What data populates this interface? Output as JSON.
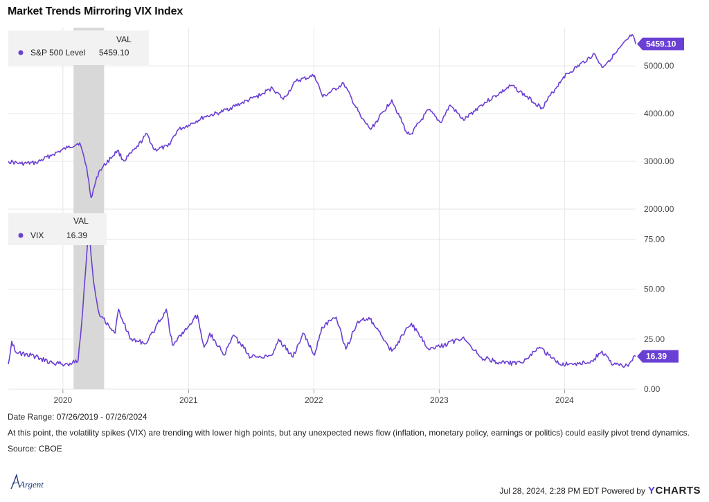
{
  "title": "Market Trends Mirroring VIX Index",
  "colors": {
    "series": "#6a3fd4",
    "grid": "#e6e6e6",
    "recession": "#d8d8d8",
    "legend_bg": "#f2f2f2"
  },
  "top_panel": {
    "legend_header": "VAL",
    "series_name": "S&P 500 Level",
    "series_value": "5459.10",
    "badge": "5459.10",
    "y_ticks": [
      "5000.00",
      "4000.00",
      "3000.00",
      "2000.00"
    ]
  },
  "bottom_panel": {
    "legend_header": "VAL",
    "series_name": "VIX",
    "series_value": "16.39",
    "badge": "16.39",
    "y_ticks": [
      "75.00",
      "50.00",
      "25.00",
      "0.00"
    ]
  },
  "x_ticks": [
    "2020",
    "2021",
    "2022",
    "2023",
    "2024"
  ],
  "footer": {
    "date_range": "Date Range: 07/26/2019 - 07/26/2024",
    "commentary": "At this point, the volatility spikes (VIX) are trending with lower high points, but any unexpected news flow (inflation, monetary policy, earnings or politics) could easily pivot trend dynamics.",
    "source": "Source: CBOE",
    "logo_text": "Argent",
    "timestamp": "Jul 28, 2024, 2:28 PM EDT Powered by",
    "brand_y": "Y",
    "brand_rest": "CHARTS"
  },
  "chart_data": [
    {
      "type": "line",
      "title": "",
      "series": [
        {
          "name": "S&P 500 Level",
          "x": [
            "2019-07-26",
            "2019-09-01",
            "2019-10-15",
            "2019-12-01",
            "2020-01-15",
            "2020-02-19",
            "2020-03-10",
            "2020-03-23",
            "2020-04-15",
            "2020-06-08",
            "2020-06-26",
            "2020-08-01",
            "2020-09-02",
            "2020-09-23",
            "2020-11-01",
            "2020-12-01",
            "2021-01-01",
            "2021-02-15",
            "2021-04-01",
            "2021-06-01",
            "2021-08-01",
            "2021-09-02",
            "2021-10-04",
            "2021-11-10",
            "2022-01-03",
            "2022-01-27",
            "2022-03-29",
            "2022-05-20",
            "2022-06-16",
            "2022-08-16",
            "2022-09-30",
            "2022-10-12",
            "2022-12-01",
            "2023-01-05",
            "2023-02-02",
            "2023-03-13",
            "2023-05-01",
            "2023-07-31",
            "2023-10-27",
            "2023-12-29",
            "2024-03-28",
            "2024-04-19",
            "2024-05-31",
            "2024-07-16",
            "2024-07-26"
          ],
          "values": [
            3000,
            2950,
            2970,
            3140,
            3290,
            3390,
            2880,
            2240,
            2790,
            3230,
            3010,
            3270,
            3580,
            3240,
            3310,
            3660,
            3760,
            3930,
            4020,
            4210,
            4400,
            4540,
            4300,
            4680,
            4800,
            4350,
            4630,
            3900,
            3670,
            4290,
            3580,
            3580,
            4080,
            3810,
            4180,
            3860,
            4170,
            4590,
            4120,
            4770,
            5250,
            4970,
            5280,
            5660,
            5459.1
          ]
        }
      ],
      "ylim": [
        2000,
        5800
      ]
    },
    {
      "type": "line",
      "title": "",
      "series": [
        {
          "name": "VIX",
          "x": [
            "2019-07-26",
            "2019-08-05",
            "2019-08-20",
            "2019-10-01",
            "2019-12-01",
            "2020-01-15",
            "2020-02-14",
            "2020-02-28",
            "2020-03-16",
            "2020-03-30",
            "2020-04-15",
            "2020-06-01",
            "2020-06-11",
            "2020-07-15",
            "2020-09-01",
            "2020-10-28",
            "2020-11-15",
            "2021-01-27",
            "2021-02-15",
            "2021-03-04",
            "2021-04-15",
            "2021-05-12",
            "2021-07-01",
            "2021-09-01",
            "2021-09-20",
            "2021-11-01",
            "2021-11-30",
            "2022-01-03",
            "2022-01-24",
            "2022-03-07",
            "2022-04-04",
            "2022-05-09",
            "2022-06-13",
            "2022-08-16",
            "2022-10-12",
            "2022-12-01",
            "2023-01-15",
            "2023-03-13",
            "2023-05-01",
            "2023-07-01",
            "2023-09-01",
            "2023-10-20",
            "2023-12-15",
            "2024-02-01",
            "2024-03-15",
            "2024-04-19",
            "2024-05-20",
            "2024-07-01",
            "2024-07-26"
          ],
          "values": [
            12.5,
            24,
            18,
            17,
            13,
            12.5,
            14,
            40,
            82,
            54,
            38,
            28,
            40,
            25,
            23,
            40,
            22,
            37,
            21,
            28,
            17,
            27,
            16,
            17,
            25,
            16,
            28,
            17,
            31,
            36,
            20,
            34,
            35,
            19,
            33,
            20,
            22,
            26,
            16,
            13,
            13,
            21,
            12.5,
            13,
            13,
            19,
            12,
            12,
            16.39
          ]
        }
      ],
      "ylim": [
        0,
        90
      ]
    }
  ]
}
